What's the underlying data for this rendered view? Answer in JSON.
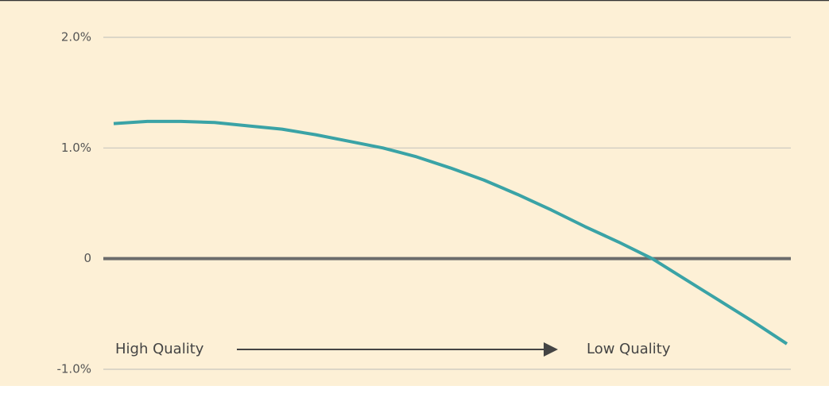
{
  "chart_data": {
    "type": "line",
    "annotations": [
      "High Quality",
      "Low Quality"
    ],
    "x": [
      0,
      1,
      2,
      3,
      4,
      5,
      6,
      7,
      8,
      9,
      10,
      11,
      12,
      13,
      14,
      15,
      16,
      17,
      18,
      19,
      20
    ],
    "xlim": [
      0,
      20
    ],
    "series": [
      {
        "name": null,
        "color": "#3aa3a6",
        "values": [
          1.22,
          1.24,
          1.24,
          1.23,
          1.2,
          1.17,
          1.12,
          1.06,
          1.0,
          0.92,
          0.82,
          0.71,
          0.58,
          0.44,
          0.29,
          0.15,
          0.0,
          -0.19,
          -0.38,
          -0.57,
          -0.77
        ]
      }
    ],
    "ylim": [
      -1,
      2
    ],
    "yticks": [
      {
        "value": 2,
        "label": "2.0%"
      },
      {
        "value": 1,
        "label": "1.0%"
      },
      0,
      {
        "value": -1,
        "label": "-1.0%"
      }
    ],
    "grid": true
  }
}
